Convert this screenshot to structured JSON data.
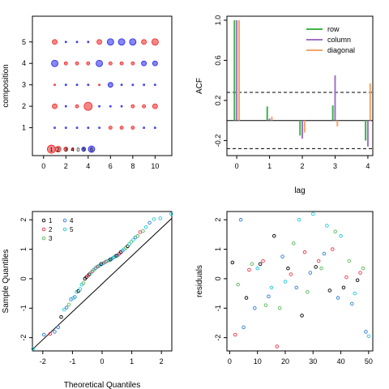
{
  "chart_data": [
    {
      "type": "scatter",
      "panel": "top-left",
      "xlabel": "",
      "ylabel": "composition",
      "xlim": [
        -1,
        11.5
      ],
      "ylim": [
        -0.3,
        6.2
      ],
      "xticks": [
        0,
        2,
        4,
        6,
        8,
        10
      ],
      "yticks": [
        1,
        2,
        3,
        4,
        5
      ],
      "legend_counts": [
        "1",
        "2",
        "3",
        "4",
        "0",
        "5",
        "6"
      ],
      "legend_x": [
        0.7,
        1.3,
        2.0,
        2.6,
        3.1,
        3.6,
        4.3
      ],
      "legend_colors": [
        "#ee2222",
        "#ee2222",
        "#ee2222",
        "#ee2222",
        "#000000",
        "#2222ee",
        "#2222ee"
      ],
      "legend_sizes": [
        5,
        3.5,
        2.5,
        1.5,
        0,
        2.5,
        4
      ],
      "grid_x": [
        1,
        2,
        3,
        4,
        5,
        6,
        7,
        8,
        9,
        10
      ],
      "grid_y": [
        1,
        2,
        3,
        4,
        5
      ],
      "cells": [
        {
          "y": 5,
          "colors": [
            "r",
            "b",
            "b",
            "b",
            "r",
            "b",
            "b",
            "b",
            "r",
            "r"
          ],
          "sizes": [
            3,
            1,
            1,
            1,
            3,
            4,
            4,
            4,
            3,
            4
          ]
        },
        {
          "y": 4,
          "colors": [
            "b",
            "r",
            "r",
            "r",
            "b",
            "r",
            "r",
            "r",
            "b",
            "b"
          ],
          "sizes": [
            4,
            2,
            2,
            2,
            4,
            2,
            2,
            2,
            3,
            3
          ]
        },
        {
          "y": 3,
          "colors": [
            "r",
            "b",
            "b",
            "b",
            "r",
            "b",
            "b",
            "b",
            "b",
            "b"
          ],
          "sizes": [
            1,
            1,
            1,
            1,
            1,
            3,
            1,
            1,
            1,
            1
          ]
        },
        {
          "y": 2,
          "colors": [
            "r",
            "b",
            "r",
            "r",
            "b",
            "b",
            "b",
            "r",
            "r",
            "r"
          ],
          "sizes": [
            3,
            1,
            2,
            5,
            1,
            1,
            1,
            2,
            2,
            3
          ]
        },
        {
          "y": 1,
          "colors": [
            "b",
            "b",
            "b",
            "b",
            "b",
            "r",
            "r",
            "r",
            "b",
            "b"
          ],
          "sizes": [
            1,
            1,
            1,
            1,
            1,
            2,
            2,
            2,
            1,
            1
          ]
        }
      ]
    },
    {
      "type": "bar",
      "panel": "top-right",
      "xlabel": "lag",
      "ylabel": "ACF",
      "xlim": [
        -0.3,
        4.15
      ],
      "ylim": [
        -0.35,
        1.04
      ],
      "xticks": [
        0,
        1,
        2,
        3,
        4
      ],
      "yticks": [
        -0.2,
        0.2,
        0.6,
        1.0
      ],
      "ytick_labels": [
        "-0.2",
        "0.2",
        "0.6",
        "1.0"
      ],
      "confidence_bounds": [
        0.28,
        -0.28
      ],
      "series": [
        {
          "name": "row",
          "color": "#3cb44b",
          "values": [
            1.0,
            0.14,
            -0.15,
            0.15,
            -0.2
          ]
        },
        {
          "name": "column",
          "color": "#a070c8",
          "values": [
            1.0,
            0.02,
            -0.18,
            0.45,
            -0.26
          ]
        },
        {
          "name": "diagonal",
          "color": "#f5a468",
          "values": [
            1.0,
            0.04,
            -0.12,
            -0.06,
            0.37
          ]
        }
      ],
      "legend_position": "top-right"
    },
    {
      "type": "scatter",
      "panel": "bottom-left",
      "xlabel": "Theoretical Quantiles",
      "ylabel": "Sample Quantiles",
      "xlim": [
        -2.35,
        2.35
      ],
      "ylim": [
        -2.45,
        2.28
      ],
      "xticks": [
        -2,
        -1,
        0,
        1,
        2
      ],
      "yticks": [
        -2,
        -1,
        0,
        1,
        2
      ],
      "legend_entries": [
        {
          "label": "1",
          "color": "#000000"
        },
        {
          "label": "2",
          "color": "#e8334a"
        },
        {
          "label": "3",
          "color": "#5cb85c"
        },
        {
          "label": "4",
          "color": "#2b7bd6"
        },
        {
          "label": "5",
          "color": "#1ec8d6"
        }
      ],
      "reference_line": [
        [
          -2.35,
          -2.4
        ],
        [
          2.35,
          2.05
        ]
      ],
      "points": [
        {
          "x": -2.33,
          "y": -2.38,
          "g": 5
        },
        {
          "x": -1.96,
          "y": -1.9,
          "g": 4
        },
        {
          "x": -1.75,
          "y": -1.87,
          "g": 2
        },
        {
          "x": -1.6,
          "y": -1.8,
          "g": 4
        },
        {
          "x": -1.48,
          "y": -1.65,
          "g": 4
        },
        {
          "x": -1.38,
          "y": -1.3,
          "g": 1
        },
        {
          "x": -1.28,
          "y": -1.05,
          "g": 5
        },
        {
          "x": -1.2,
          "y": -0.98,
          "g": 4
        },
        {
          "x": -1.12,
          "y": -0.88,
          "g": 3
        },
        {
          "x": -1.05,
          "y": -0.7,
          "g": 4
        },
        {
          "x": -0.98,
          "y": -0.66,
          "g": 5
        },
        {
          "x": -0.92,
          "y": -0.62,
          "g": 4
        },
        {
          "x": -0.86,
          "y": -0.45,
          "g": 5
        },
        {
          "x": -0.8,
          "y": -0.42,
          "g": 1
        },
        {
          "x": -0.74,
          "y": -0.35,
          "g": 5
        },
        {
          "x": -0.69,
          "y": -0.2,
          "g": 5
        },
        {
          "x": -0.63,
          "y": -0.15,
          "g": 3
        },
        {
          "x": -0.58,
          "y": 0.0,
          "g": 1
        },
        {
          "x": -0.53,
          "y": 0.05,
          "g": 1
        },
        {
          "x": -0.48,
          "y": 0.1,
          "g": 2
        },
        {
          "x": -0.43,
          "y": 0.15,
          "g": 1
        },
        {
          "x": -0.38,
          "y": 0.2,
          "g": 5
        },
        {
          "x": -0.33,
          "y": 0.25,
          "g": 2
        },
        {
          "x": -0.28,
          "y": 0.3,
          "g": 3
        },
        {
          "x": -0.23,
          "y": 0.35,
          "g": 4
        },
        {
          "x": -0.18,
          "y": 0.4,
          "g": 3
        },
        {
          "x": -0.13,
          "y": 0.42,
          "g": 2
        },
        {
          "x": -0.08,
          "y": 0.45,
          "g": 5
        },
        {
          "x": -0.03,
          "y": 0.5,
          "g": 1
        },
        {
          "x": 0.03,
          "y": 0.52,
          "g": 4
        },
        {
          "x": 0.08,
          "y": 0.55,
          "g": 3
        },
        {
          "x": 0.13,
          "y": 0.58,
          "g": 2
        },
        {
          "x": 0.18,
          "y": 0.6,
          "g": 5
        },
        {
          "x": 0.23,
          "y": 0.62,
          "g": 3
        },
        {
          "x": 0.28,
          "y": 0.65,
          "g": 1
        },
        {
          "x": 0.33,
          "y": 0.68,
          "g": 4
        },
        {
          "x": 0.38,
          "y": 0.72,
          "g": 5
        },
        {
          "x": 0.43,
          "y": 0.75,
          "g": 3
        },
        {
          "x": 0.48,
          "y": 0.78,
          "g": 1
        },
        {
          "x": 0.53,
          "y": 0.8,
          "g": 4
        },
        {
          "x": 0.58,
          "y": 0.85,
          "g": 2
        },
        {
          "x": 0.63,
          "y": 0.9,
          "g": 1
        },
        {
          "x": 0.69,
          "y": 0.95,
          "g": 4
        },
        {
          "x": 0.74,
          "y": 1.0,
          "g": 5
        },
        {
          "x": 0.8,
          "y": 1.05,
          "g": 3
        },
        {
          "x": 0.86,
          "y": 1.1,
          "g": 1
        },
        {
          "x": 0.92,
          "y": 1.18,
          "g": 5
        },
        {
          "x": 0.98,
          "y": 1.25,
          "g": 3
        },
        {
          "x": 1.05,
          "y": 1.32,
          "g": 5
        },
        {
          "x": 1.12,
          "y": 1.4,
          "g": 4
        },
        {
          "x": 1.2,
          "y": 1.45,
          "g": 3
        },
        {
          "x": 1.28,
          "y": 1.58,
          "g": 2
        },
        {
          "x": 1.38,
          "y": 1.62,
          "g": 3
        },
        {
          "x": 1.48,
          "y": 1.75,
          "g": 5
        },
        {
          "x": 1.6,
          "y": 1.9,
          "g": 4
        },
        {
          "x": 1.75,
          "y": 2.02,
          "g": 5
        },
        {
          "x": 1.96,
          "y": 2.05,
          "g": 5
        },
        {
          "x": 2.33,
          "y": 2.2,
          "g": 5
        }
      ]
    },
    {
      "type": "scatter",
      "panel": "bottom-right",
      "xlabel": "",
      "ylabel": "residuals",
      "xlim": [
        -1,
        51.5
      ],
      "ylim": [
        -2.45,
        2.28
      ],
      "xticks": [
        0,
        10,
        20,
        30,
        40,
        50
      ],
      "yticks": [
        -2,
        -1,
        0,
        1,
        2
      ],
      "points": [
        {
          "x": 1,
          "y": 0.55,
          "g": 1
        },
        {
          "x": 2,
          "y": -1.9,
          "g": 2
        },
        {
          "x": 3,
          "y": -0.2,
          "g": 3
        },
        {
          "x": 4,
          "y": 2.0,
          "g": 4
        },
        {
          "x": 5,
          "y": -1.65,
          "g": 4
        },
        {
          "x": 6,
          "y": -0.65,
          "g": 1
        },
        {
          "x": 7,
          "y": 0.3,
          "g": 2
        },
        {
          "x": 8,
          "y": 0.5,
          "g": 3
        },
        {
          "x": 9,
          "y": -1.0,
          "g": 4
        },
        {
          "x": 10,
          "y": 0.35,
          "g": 5
        },
        {
          "x": 11,
          "y": 0.5,
          "g": 1
        },
        {
          "x": 12,
          "y": 0.6,
          "g": 2
        },
        {
          "x": 13,
          "y": -0.9,
          "g": 3
        },
        {
          "x": 14,
          "y": -0.6,
          "g": 4
        },
        {
          "x": 15,
          "y": -0.3,
          "g": 5
        },
        {
          "x": 16,
          "y": 1.45,
          "g": 1
        },
        {
          "x": 17,
          "y": -2.3,
          "g": 2
        },
        {
          "x": 18,
          "y": -1.0,
          "g": 3
        },
        {
          "x": 19,
          "y": 0.75,
          "g": 4
        },
        {
          "x": 20,
          "y": -0.1,
          "g": 5
        },
        {
          "x": 21,
          "y": 0.35,
          "g": 1
        },
        {
          "x": 22,
          "y": 0.15,
          "g": 2
        },
        {
          "x": 23,
          "y": 1.2,
          "g": 3
        },
        {
          "x": 24,
          "y": -0.3,
          "g": 4
        },
        {
          "x": 25,
          "y": 2.0,
          "g": 5
        },
        {
          "x": 26,
          "y": -1.25,
          "g": 1
        },
        {
          "x": 27,
          "y": 0.9,
          "g": 2
        },
        {
          "x": 28,
          "y": -0.45,
          "g": 3
        },
        {
          "x": 29,
          "y": 0.2,
          "g": 4
        },
        {
          "x": 30,
          "y": 2.2,
          "g": 5
        },
        {
          "x": 31,
          "y": 0.4,
          "g": 1
        },
        {
          "x": 32,
          "y": 0.6,
          "g": 2
        },
        {
          "x": 33,
          "y": 0.35,
          "g": 3
        },
        {
          "x": 34,
          "y": 0.85,
          "g": 4
        },
        {
          "x": 35,
          "y": 1.8,
          "g": 5
        },
        {
          "x": 36,
          "y": -0.4,
          "g": 1
        },
        {
          "x": 37,
          "y": 1.0,
          "g": 2
        },
        {
          "x": 38,
          "y": 1.6,
          "g": 3
        },
        {
          "x": 39,
          "y": -0.65,
          "g": 4
        },
        {
          "x": 40,
          "y": 1.45,
          "g": 5
        },
        {
          "x": 41,
          "y": -0.3,
          "g": 1
        },
        {
          "x": 42,
          "y": 0.05,
          "g": 2
        },
        {
          "x": 43,
          "y": 0.6,
          "g": 3
        },
        {
          "x": 44,
          "y": -0.85,
          "g": 4
        },
        {
          "x": 45,
          "y": -0.5,
          "g": 5
        },
        {
          "x": 46,
          "y": -0.05,
          "g": 1
        },
        {
          "x": 47,
          "y": 0.2,
          "g": 2
        },
        {
          "x": 48,
          "y": 0.35,
          "g": 3
        },
        {
          "x": 49,
          "y": -1.8,
          "g": 4
        },
        {
          "x": 50,
          "y": -1.95,
          "g": 5
        }
      ]
    }
  ]
}
